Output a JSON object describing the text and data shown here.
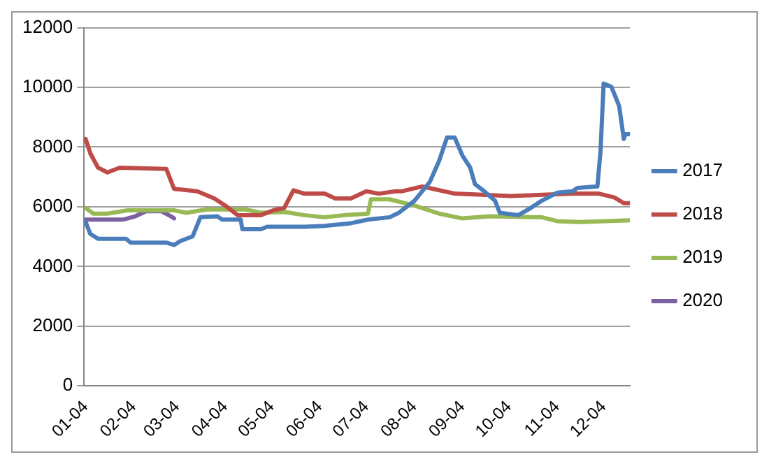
{
  "chart_data": {
    "type": "line",
    "xlim": [
      "--01-03",
      "--12-21"
    ],
    "ylim": [
      0,
      12000
    ],
    "yticks": [
      0,
      2000,
      4000,
      6000,
      8000,
      10000,
      12000
    ],
    "xticks": [
      {
        "value": "--01-04",
        "label": "01-04"
      },
      {
        "value": "--02-04",
        "label": "02-04"
      },
      {
        "value": "--03-04",
        "label": "03-04"
      },
      {
        "value": "--04-04",
        "label": "04-04"
      },
      {
        "value": "--05-04",
        "label": "05-04"
      },
      {
        "value": "--06-04",
        "label": "06-04"
      },
      {
        "value": "--07-04",
        "label": "07-04"
      },
      {
        "value": "--08-04",
        "label": "08-04"
      },
      {
        "value": "--09-04",
        "label": "09-04"
      },
      {
        "value": "--10-04",
        "label": "10-04"
      },
      {
        "value": "--11-04",
        "label": "11-04"
      },
      {
        "value": "--12-04",
        "label": "12-04"
      }
    ],
    "grid": "y",
    "legend": "right",
    "marker": "none",
    "line_style": "solid",
    "series": [
      {
        "name": "2017",
        "color": "#4a7ebb",
        "x": [
          "--01-04",
          "--01-07",
          "--01-12",
          "--01-30",
          "--02-02",
          "--02-25",
          "--03-02",
          "--03-06",
          "--03-14",
          "--03-19",
          "--03-30",
          "--04-02",
          "--04-14",
          "--04-15",
          "--04-27",
          "--05-01",
          "--05-25",
          "--06-07",
          "--06-24",
          "--07-05",
          "--07-19",
          "--07-25",
          "--08-04",
          "--08-14",
          "--08-20",
          "--08-25",
          "--08-30",
          "--09-04",
          "--09-09",
          "--09-12",
          "--09-18",
          "--09-25",
          "--09-28",
          "--10-10",
          "--10-18",
          "--10-25",
          "--11-04",
          "--11-14",
          "--11-17",
          "--11-30",
          "--12-02",
          "--12-04",
          "--12-09",
          "--12-14",
          "--12-17",
          "--12-18",
          "--12-21"
        ],
        "values": [
          5490,
          5090,
          4930,
          4930,
          4800,
          4800,
          4720,
          4850,
          5010,
          5650,
          5680,
          5570,
          5570,
          5250,
          5250,
          5330,
          5330,
          5360,
          5450,
          5570,
          5650,
          5800,
          6200,
          6840,
          7550,
          8320,
          8320,
          7710,
          7310,
          6760,
          6520,
          6200,
          5800,
          5720,
          5960,
          6200,
          6470,
          6520,
          6630,
          6680,
          7870,
          10130,
          10020,
          9380,
          8270,
          8430,
          8430
        ]
      },
      {
        "name": "2018",
        "color": "#be4b48",
        "x": [
          "--01-04",
          "--01-07",
          "--01-12",
          "--01-18",
          "--01-26",
          "--02-25",
          "--03-02",
          "--03-17",
          "--03-28",
          "--04-04",
          "--04-12",
          "--04-27",
          "--05-05",
          "--05-12",
          "--05-18",
          "--05-25",
          "--06-07",
          "--06-14",
          "--06-24",
          "--07-04",
          "--07-12",
          "--07-23",
          "--07-27",
          "--08-09",
          "--08-16",
          "--08-30",
          "--10-05",
          "--11-15",
          "--12-01",
          "--12-11",
          "--12-17",
          "--12-21"
        ],
        "values": [
          8270,
          7790,
          7310,
          7150,
          7310,
          7270,
          6600,
          6520,
          6280,
          6040,
          5720,
          5720,
          5880,
          5960,
          6550,
          6440,
          6440,
          6280,
          6280,
          6520,
          6440,
          6520,
          6520,
          6680,
          6600,
          6440,
          6360,
          6440,
          6440,
          6310,
          6120,
          6120
        ]
      },
      {
        "name": "2019",
        "color": "#98b954",
        "x": [
          "--01-04",
          "--01-09",
          "--01-18",
          "--01-31",
          "--03-02",
          "--03-10",
          "--03-23",
          "--04-17",
          "--04-27",
          "--05-12",
          "--05-25",
          "--06-07",
          "--06-20",
          "--07-05",
          "--07-07",
          "--07-19",
          "--08-04",
          "--08-20",
          "--09-04",
          "--09-21",
          "--10-25",
          "--11-04",
          "--11-19",
          "--12-21"
        ],
        "values": [
          5960,
          5770,
          5770,
          5880,
          5880,
          5800,
          5910,
          5910,
          5800,
          5830,
          5720,
          5650,
          5720,
          5770,
          6250,
          6250,
          6040,
          5770,
          5610,
          5680,
          5650,
          5520,
          5490,
          5550
        ]
      },
      {
        "name": "2020",
        "color": "#7d60a0",
        "x": [
          "--01-04",
          "--01-28",
          "--02-05",
          "--02-12",
          "--02-22",
          "--02-28",
          "--03-02"
        ],
        "values": [
          5570,
          5570,
          5680,
          5850,
          5850,
          5680,
          5610
        ]
      }
    ]
  }
}
